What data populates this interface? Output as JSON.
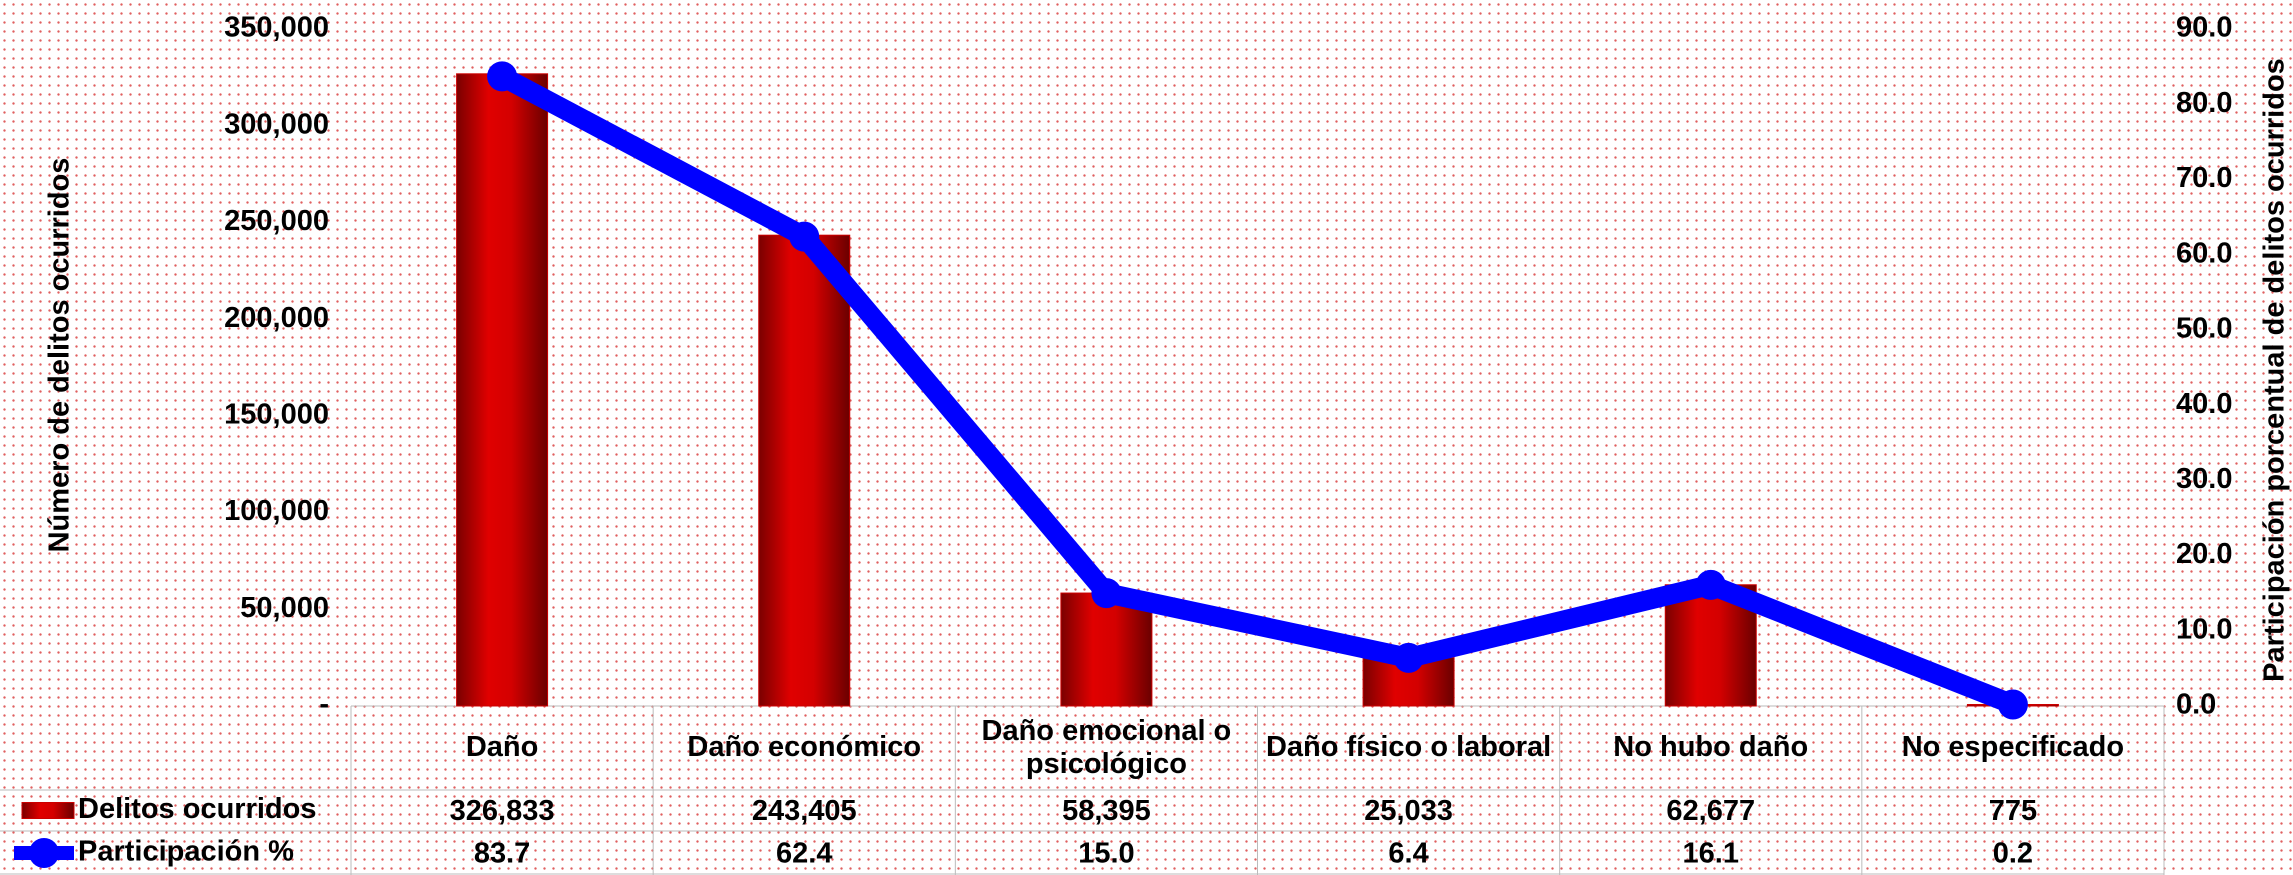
{
  "chart_data": {
    "type": "bar-line",
    "y_label": "Número de delitos ocurridos",
    "y2_label": "Participación porcentual de delitos ocurridos",
    "categories": [
      "Daño",
      "Daño económico",
      "Daño emocional o psicológico",
      "Daño físico o laboral",
      "No hubo daño",
      "No especificado"
    ],
    "series": [
      {
        "name": "Delitos ocurridos",
        "type": "bar",
        "color": "#cc0000",
        "values": [
          326833,
          243405,
          58395,
          25033,
          62677,
          775
        ],
        "value_labels": [
          "326,833",
          "243,405",
          "58,395",
          "25,033",
          "62,677",
          "775"
        ]
      },
      {
        "name": "Participación %",
        "type": "line",
        "axis": "y2",
        "color": "#0000ff",
        "values": [
          83.7,
          62.4,
          15.0,
          6.4,
          16.1,
          0.2
        ],
        "value_labels": [
          "83.7",
          "62.4",
          "15.0",
          "6.4",
          "16.1",
          "0.2"
        ]
      }
    ],
    "ylim": [
      0,
      350000
    ],
    "yticks": [
      {
        "value": 0,
        "label": "-"
      },
      {
        "value": 50000,
        "label": "50,000"
      },
      {
        "value": 100000,
        "label": "100,000"
      },
      {
        "value": 150000,
        "label": "150,000"
      },
      {
        "value": 200000,
        "label": "200,000"
      },
      {
        "value": 250000,
        "label": "250,000"
      },
      {
        "value": 300000,
        "label": "300,000"
      },
      {
        "value": 350000,
        "label": "350,000"
      }
    ],
    "y2lim": [
      0,
      90
    ],
    "y2ticks": [
      {
        "value": 0,
        "label": "0.0"
      },
      {
        "value": 10,
        "label": "10.0"
      },
      {
        "value": 20,
        "label": "20.0"
      },
      {
        "value": 30,
        "label": "30.0"
      },
      {
        "value": 40,
        "label": "40.0"
      },
      {
        "value": 50,
        "label": "50.0"
      },
      {
        "value": 60,
        "label": "60.0"
      },
      {
        "value": 70,
        "label": "70.0"
      },
      {
        "value": 80,
        "label": "80.0"
      },
      {
        "value": 90,
        "label": "90.0"
      }
    ]
  }
}
